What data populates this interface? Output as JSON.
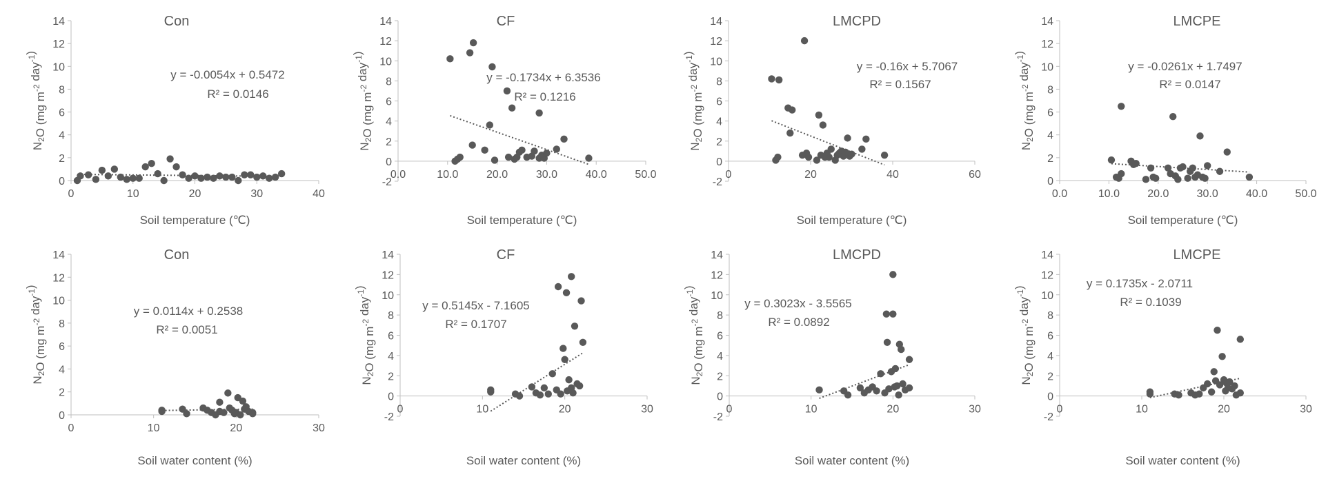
{
  "chart_data": [
    {
      "type": "scatter",
      "title": "Con",
      "xlabel": "Soil temperature (℃)",
      "ylabel": "N2O (mg m-2 day-1)",
      "xlim": [
        0,
        40
      ],
      "ylim": [
        0,
        14
      ],
      "xticks": [
        0,
        10,
        20,
        30,
        40
      ],
      "xtick_labels": [
        "0",
        "10",
        "20",
        "30",
        "40"
      ],
      "yticks": [
        0,
        2,
        4,
        6,
        8,
        10,
        12,
        14
      ],
      "ytick_labels": [
        "0",
        "2",
        "4",
        "6",
        "8",
        "10",
        "12",
        "14"
      ],
      "trendline": {
        "slope": -0.0054,
        "intercept": 0.5472
      },
      "equation": "y = -0.0054x + 0.5472",
      "r2": "R² = 0.0146",
      "points": [
        [
          1,
          0
        ],
        [
          1.5,
          0.4
        ],
        [
          2.8,
          0.5
        ],
        [
          4,
          0.1
        ],
        [
          5,
          0.9
        ],
        [
          6,
          0.4
        ],
        [
          7,
          1.0
        ],
        [
          8,
          0.3
        ],
        [
          9,
          0.1
        ],
        [
          10,
          0.2
        ],
        [
          11,
          0.2
        ],
        [
          12,
          1.2
        ],
        [
          13,
          1.5
        ],
        [
          14,
          0.6
        ],
        [
          15,
          0.0
        ],
        [
          16,
          1.9
        ],
        [
          17,
          1.2
        ],
        [
          18,
          0.5
        ],
        [
          19,
          0.2
        ],
        [
          20,
          0.4
        ],
        [
          21,
          0.2
        ],
        [
          22,
          0.3
        ],
        [
          23,
          0.2
        ],
        [
          24,
          0.4
        ],
        [
          25,
          0.3
        ],
        [
          26,
          0.3
        ],
        [
          27,
          0.0
        ],
        [
          28,
          0.5
        ],
        [
          29,
          0.5
        ],
        [
          30,
          0.3
        ],
        [
          31,
          0.4
        ],
        [
          32,
          0.2
        ],
        [
          33,
          0.3
        ],
        [
          34,
          0.6
        ]
      ]
    },
    {
      "type": "scatter",
      "title": "CF",
      "xlabel": "Soil temperature (℃)",
      "ylabel": "N2O (mg m-2 day-1)",
      "xlim": [
        0,
        50
      ],
      "ylim": [
        -2,
        14
      ],
      "xticks": [
        0,
        10,
        20,
        30,
        40,
        50
      ],
      "xtick_labels": [
        "0.0",
        "10.0",
        "20.0",
        "30.0",
        "40.0",
        "50.0"
      ],
      "yticks": [
        -2,
        0,
        2,
        4,
        6,
        8,
        10,
        12,
        14
      ],
      "ytick_labels": [
        "-2",
        "0",
        "2",
        "4",
        "6",
        "8",
        "10",
        "12",
        "14"
      ],
      "trendline": {
        "slope": -0.1734,
        "intercept": 6.3536
      },
      "equation": "y = -0.1734x + 6.3536",
      "r2": "R² = 0.1216",
      "points": [
        [
          10.5,
          10.2
        ],
        [
          11.5,
          0.0
        ],
        [
          12.0,
          0.2
        ],
        [
          12.5,
          0.4
        ],
        [
          14.5,
          10.8
        ],
        [
          15.2,
          11.8
        ],
        [
          15.0,
          1.6
        ],
        [
          17.5,
          1.1
        ],
        [
          18.5,
          3.6
        ],
        [
          19.0,
          9.4
        ],
        [
          19.5,
          0.1
        ],
        [
          22.0,
          7.0
        ],
        [
          22.3,
          0.4
        ],
        [
          23.0,
          5.3
        ],
        [
          23.5,
          0.2
        ],
        [
          24.0,
          0.4
        ],
        [
          24.5,
          0.9
        ],
        [
          25.0,
          1.1
        ],
        [
          26.0,
          0.4
        ],
        [
          27.0,
          0.5
        ],
        [
          27.5,
          1.0
        ],
        [
          28.5,
          0.3
        ],
        [
          28.5,
          4.8
        ],
        [
          29.0,
          0.6
        ],
        [
          29.5,
          0.3
        ],
        [
          30.0,
          0.8
        ],
        [
          32.0,
          1.2
        ],
        [
          33.5,
          2.2
        ],
        [
          38.5,
          0.3
        ]
      ]
    },
    {
      "type": "scatter",
      "title": "LMCPD",
      "xlabel": "Soil temperature (℃)",
      "ylabel": "N2O (mg m-2 day-1)",
      "xlim": [
        0,
        60
      ],
      "ylim": [
        -2,
        14
      ],
      "xticks": [
        0,
        20,
        40,
        60
      ],
      "xtick_labels": [
        "0",
        "20",
        "40",
        "60"
      ],
      "yticks": [
        -2,
        0,
        2,
        4,
        6,
        8,
        10,
        12,
        14
      ],
      "ytick_labels": [
        "-2",
        "0",
        "2",
        "4",
        "6",
        "8",
        "10",
        "12",
        "14"
      ],
      "trendline": {
        "slope": -0.16,
        "intercept": 5.7067
      },
      "equation": "y = -0.16x + 5.7067",
      "r2": "R² = 0.1567",
      "points": [
        [
          10.5,
          8.2
        ],
        [
          11.5,
          0.1
        ],
        [
          12.0,
          0.4
        ],
        [
          12.3,
          8.1
        ],
        [
          14.5,
          5.3
        ],
        [
          15.0,
          2.8
        ],
        [
          15.5,
          5.1
        ],
        [
          18.0,
          0.6
        ],
        [
          18.5,
          12.0
        ],
        [
          19.0,
          0.8
        ],
        [
          19.5,
          0.4
        ],
        [
          21.5,
          0.1
        ],
        [
          22.0,
          4.6
        ],
        [
          22.5,
          0.6
        ],
        [
          23.0,
          3.6
        ],
        [
          23.5,
          0.4
        ],
        [
          24.0,
          0.8
        ],
        [
          24.5,
          0.4
        ],
        [
          25.0,
          1.2
        ],
        [
          26.0,
          0.1
        ],
        [
          26.5,
          0.6
        ],
        [
          27.0,
          0.8
        ],
        [
          27.5,
          1.0
        ],
        [
          28.0,
          0.5
        ],
        [
          28.5,
          0.9
        ],
        [
          29.0,
          2.3
        ],
        [
          29.5,
          0.5
        ],
        [
          30.0,
          0.7
        ],
        [
          32.5,
          1.2
        ],
        [
          33.5,
          2.2
        ],
        [
          38.0,
          0.6
        ]
      ]
    },
    {
      "type": "scatter",
      "title": "LMCPE",
      "xlabel": "Soil temperature (℃)",
      "ylabel": "N2O (mg m-2 day-1)",
      "xlim": [
        0,
        50
      ],
      "ylim": [
        0,
        14
      ],
      "xticks": [
        0,
        10,
        20,
        30,
        40,
        50
      ],
      "xtick_labels": [
        "0.0",
        "10.0",
        "20.0",
        "30.0",
        "40.0",
        "50.0"
      ],
      "yticks": [
        0,
        2,
        4,
        6,
        8,
        10,
        12,
        14
      ],
      "ytick_labels": [
        "0",
        "2",
        "4",
        "6",
        "8",
        "10",
        "12",
        "14"
      ],
      "trendline": {
        "slope": -0.0261,
        "intercept": 1.7497
      },
      "equation": "y = -0.0261x + 1.7497",
      "r2": "R² = 0.0147",
      "points": [
        [
          10.5,
          1.8
        ],
        [
          11.5,
          0.3
        ],
        [
          12.0,
          0.2
        ],
        [
          12.5,
          6.5
        ],
        [
          12.5,
          0.6
        ],
        [
          14.5,
          1.7
        ],
        [
          15.0,
          1.4
        ],
        [
          15.5,
          1.5
        ],
        [
          17.5,
          0.1
        ],
        [
          18.5,
          1.1
        ],
        [
          19.0,
          0.3
        ],
        [
          19.5,
          0.2
        ],
        [
          22.0,
          1.1
        ],
        [
          22.5,
          0.6
        ],
        [
          23.0,
          5.6
        ],
        [
          23.5,
          0.4
        ],
        [
          24.0,
          0.1
        ],
        [
          24.5,
          1.1
        ],
        [
          25.0,
          1.2
        ],
        [
          26.0,
          0.2
        ],
        [
          26.5,
          0.8
        ],
        [
          27.0,
          1.1
        ],
        [
          27.5,
          0.3
        ],
        [
          28.0,
          0.5
        ],
        [
          28.5,
          3.9
        ],
        [
          29.0,
          0.3
        ],
        [
          29.5,
          0.2
        ],
        [
          30.0,
          1.3
        ],
        [
          32.5,
          0.8
        ],
        [
          34.0,
          2.5
        ],
        [
          38.5,
          0.3
        ]
      ]
    },
    {
      "type": "scatter",
      "title": "Con",
      "xlabel": "Soil water content (%)",
      "ylabel": "N2O (mg m-2 day-1)",
      "xlim": [
        0,
        30
      ],
      "ylim": [
        0,
        14
      ],
      "xticks": [
        0,
        10,
        20,
        30
      ],
      "xtick_labels": [
        "0",
        "10",
        "20",
        "30"
      ],
      "yticks": [
        0,
        2,
        4,
        6,
        8,
        10,
        12,
        14
      ],
      "ytick_labels": [
        "0",
        "2",
        "4",
        "6",
        "8",
        "10",
        "12",
        "14"
      ],
      "trendline": {
        "slope": 0.0114,
        "intercept": 0.2538
      },
      "equation": "y = 0.0114x + 0.2538",
      "r2": "R² = 0.0051",
      "points": [
        [
          11,
          0.4
        ],
        [
          11,
          0.3
        ],
        [
          13.5,
          0.5
        ],
        [
          14,
          0.1
        ],
        [
          16,
          0.6
        ],
        [
          16.5,
          0.4
        ],
        [
          17,
          0.2
        ],
        [
          17.5,
          0.0
        ],
        [
          18,
          1.1
        ],
        [
          18,
          0.3
        ],
        [
          18.5,
          0.2
        ],
        [
          19,
          1.9
        ],
        [
          19.2,
          0.6
        ],
        [
          19.5,
          0.4
        ],
        [
          19.8,
          0.1
        ],
        [
          20,
          0.2
        ],
        [
          20.2,
          1.5
        ],
        [
          20.5,
          0.0
        ],
        [
          20.8,
          1.2
        ],
        [
          21,
          0.5
        ],
        [
          21.2,
          0.7
        ],
        [
          21.5,
          0.3
        ],
        [
          22,
          0.2
        ],
        [
          22,
          0.1
        ]
      ]
    },
    {
      "type": "scatter",
      "title": "CF",
      "xlabel": "Soil water content (%)",
      "ylabel": "N2O (mg m-2 day-1)",
      "xlim": [
        0,
        30
      ],
      "ylim": [
        -2,
        14
      ],
      "xticks": [
        0,
        10,
        20,
        30
      ],
      "xtick_labels": [
        "0",
        "10",
        "20",
        "30"
      ],
      "yticks": [
        -2,
        0,
        2,
        4,
        6,
        8,
        10,
        12,
        14
      ],
      "ytick_labels": [
        "-2",
        "0",
        "2",
        "4",
        "6",
        "8",
        "10",
        "12",
        "14"
      ],
      "trendline": {
        "slope": 0.5145,
        "intercept": -7.1605
      },
      "equation": "y = 0.5145x - 7.1605",
      "r2": "R² = 0.1707",
      "points": [
        [
          11,
          0.6
        ],
        [
          11,
          0.4
        ],
        [
          14,
          0.2
        ],
        [
          14.5,
          0.0
        ],
        [
          16,
          0.9
        ],
        [
          16.5,
          0.3
        ],
        [
          17,
          0.1
        ],
        [
          17.5,
          0.8
        ],
        [
          18,
          0.2
        ],
        [
          18.5,
          2.2
        ],
        [
          19,
          0.6
        ],
        [
          19.2,
          10.8
        ],
        [
          19.5,
          0.2
        ],
        [
          19.8,
          4.7
        ],
        [
          20,
          3.6
        ],
        [
          20.2,
          10.2
        ],
        [
          20.3,
          0.5
        ],
        [
          20.5,
          1.6
        ],
        [
          20.8,
          11.8
        ],
        [
          20.8,
          0.8
        ],
        [
          21,
          0.3
        ],
        [
          21.2,
          6.9
        ],
        [
          21.5,
          1.2
        ],
        [
          21.8,
          1.0
        ],
        [
          22,
          9.4
        ],
        [
          22.2,
          5.3
        ]
      ]
    },
    {
      "type": "scatter",
      "title": "LMCPD",
      "xlabel": "Soil water content (%)",
      "ylabel": "N2O (mg m-2 day-1)",
      "xlim": [
        0,
        30
      ],
      "ylim": [
        -2,
        14
      ],
      "xticks": [
        0,
        10,
        20,
        30
      ],
      "xtick_labels": [
        "0",
        "10",
        "20",
        "30"
      ],
      "yticks": [
        -2,
        0,
        2,
        4,
        6,
        8,
        10,
        12,
        14
      ],
      "ytick_labels": [
        "-2",
        "0",
        "2",
        "4",
        "6",
        "8",
        "10",
        "12",
        "14"
      ],
      "trendline": {
        "slope": 0.3023,
        "intercept": -3.5565
      },
      "equation": "y = 0.3023x - 3.5565",
      "r2": "R² = 0.0892",
      "points": [
        [
          11,
          0.6
        ],
        [
          14,
          0.5
        ],
        [
          14.5,
          0.1
        ],
        [
          16,
          0.8
        ],
        [
          16.5,
          0.3
        ],
        [
          17,
          0.6
        ],
        [
          17.5,
          0.9
        ],
        [
          18,
          0.5
        ],
        [
          18.5,
          2.2
        ],
        [
          19,
          0.3
        ],
        [
          19.2,
          8.1
        ],
        [
          19.3,
          5.3
        ],
        [
          19.5,
          0.7
        ],
        [
          19.8,
          2.4
        ],
        [
          20,
          12.0
        ],
        [
          20,
          8.1
        ],
        [
          20.2,
          0.9
        ],
        [
          20.3,
          2.7
        ],
        [
          20.5,
          1.0
        ],
        [
          20.7,
          0.1
        ],
        [
          20.8,
          5.1
        ],
        [
          21,
          4.6
        ],
        [
          21.2,
          1.2
        ],
        [
          21.5,
          0.6
        ],
        [
          22,
          3.6
        ],
        [
          22,
          0.8
        ]
      ]
    },
    {
      "type": "scatter",
      "title": "LMCPE",
      "xlabel": "Soil water content (%)",
      "ylabel": "N2O (mg m-2 day-1)",
      "xlim": [
        0,
        30
      ],
      "ylim": [
        -2,
        14
      ],
      "xticks": [
        0,
        10,
        20,
        30
      ],
      "xtick_labels": [
        "0",
        "10",
        "20",
        "30"
      ],
      "yticks": [
        -2,
        0,
        2,
        4,
        6,
        8,
        10,
        12,
        14
      ],
      "ytick_labels": [
        "-2",
        "0",
        "2",
        "4",
        "6",
        "8",
        "10",
        "12",
        "14"
      ],
      "trendline": {
        "slope": 0.1735,
        "intercept": -2.0711
      },
      "equation": "y = 0.1735x - 2.0711",
      "r2": "R² = 0.1039",
      "points": [
        [
          11,
          0.4
        ],
        [
          11,
          0.2
        ],
        [
          14,
          0.2
        ],
        [
          14.5,
          0.1
        ],
        [
          16,
          0.3
        ],
        [
          16.5,
          0.1
        ],
        [
          17,
          0.2
        ],
        [
          17.5,
          0.8
        ],
        [
          18,
          1.2
        ],
        [
          18.5,
          0.4
        ],
        [
          18.8,
          2.4
        ],
        [
          19,
          1.5
        ],
        [
          19.2,
          6.5
        ],
        [
          19.5,
          1.1
        ],
        [
          19.8,
          3.9
        ],
        [
          20,
          1.6
        ],
        [
          20.2,
          0.5
        ],
        [
          20.3,
          1.3
        ],
        [
          20.5,
          0.8
        ],
        [
          20.7,
          1.4
        ],
        [
          21,
          0.7
        ],
        [
          21.3,
          1.0
        ],
        [
          21.5,
          0.1
        ],
        [
          22,
          5.6
        ],
        [
          22,
          0.3
        ]
      ]
    }
  ]
}
